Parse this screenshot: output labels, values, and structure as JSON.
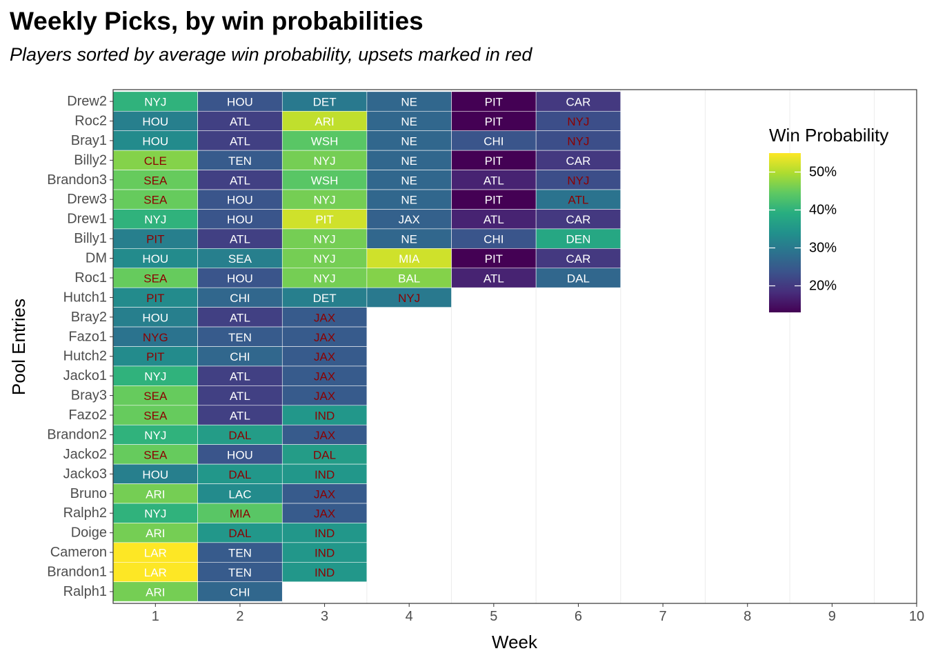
{
  "chart_data": {
    "type": "heatmap",
    "title": "Weekly Picks, by win probabilities",
    "subtitle": "Players sorted by average win probability, upsets marked in red",
    "xlabel": "Week",
    "ylabel": "Pool Entries",
    "x_ticks": [
      1,
      2,
      3,
      4,
      5,
      6,
      7,
      8,
      9,
      10
    ],
    "xlim": [
      0.5,
      10
    ],
    "grid": true,
    "upset_color": "#8b0000",
    "normal_text_color": "#ffffff",
    "legend": {
      "title": "Win Probability",
      "placement": "right",
      "range": [
        0.13,
        0.55
      ],
      "ticks": [
        {
          "value": 0.2,
          "label": "20%"
        },
        {
          "value": 0.3,
          "label": "30%"
        },
        {
          "value": 0.4,
          "label": "40%"
        },
        {
          "value": 0.5,
          "label": "50%"
        }
      ]
    },
    "rows": [
      {
        "entry": "Drew2",
        "picks": [
          [
            "NYJ",
            0.4,
            0
          ],
          [
            "HOU",
            0.24,
            0
          ],
          [
            "DET",
            0.3,
            0
          ],
          [
            "NE",
            0.27,
            0
          ],
          [
            "PIT",
            0.13,
            0
          ],
          [
            "CAR",
            0.2,
            0
          ]
        ]
      },
      {
        "entry": "Roc2",
        "picks": [
          [
            "HOU",
            0.31,
            0
          ],
          [
            "ATL",
            0.21,
            0
          ],
          [
            "ARI",
            0.51,
            0
          ],
          [
            "NE",
            0.27,
            0
          ],
          [
            "PIT",
            0.13,
            0
          ],
          [
            "NYJ",
            0.23,
            1
          ]
        ]
      },
      {
        "entry": "Bray1",
        "picks": [
          [
            "HOU",
            0.33,
            0
          ],
          [
            "ATL",
            0.21,
            0
          ],
          [
            "WSH",
            0.44,
            0
          ],
          [
            "NE",
            0.27,
            0
          ],
          [
            "CHI",
            0.24,
            0
          ],
          [
            "NYJ",
            0.23,
            1
          ]
        ]
      },
      {
        "entry": "Billy2",
        "picks": [
          [
            "CLE",
            0.47,
            1
          ],
          [
            "TEN",
            0.25,
            0
          ],
          [
            "NYJ",
            0.46,
            0
          ],
          [
            "NE",
            0.27,
            0
          ],
          [
            "PIT",
            0.13,
            0
          ],
          [
            "CAR",
            0.2,
            0
          ]
        ]
      },
      {
        "entry": "Brandon3",
        "picks": [
          [
            "SEA",
            0.45,
            1
          ],
          [
            "ATL",
            0.21,
            0
          ],
          [
            "WSH",
            0.44,
            0
          ],
          [
            "NE",
            0.27,
            0
          ],
          [
            "ATL",
            0.17,
            0
          ],
          [
            "NYJ",
            0.23,
            1
          ]
        ]
      },
      {
        "entry": "Drew3",
        "picks": [
          [
            "SEA",
            0.45,
            1
          ],
          [
            "HOU",
            0.24,
            0
          ],
          [
            "NYJ",
            0.46,
            0
          ],
          [
            "NE",
            0.27,
            0
          ],
          [
            "PIT",
            0.13,
            0
          ],
          [
            "ATL",
            0.29,
            1
          ]
        ]
      },
      {
        "entry": "Drew1",
        "picks": [
          [
            "NYJ",
            0.4,
            0
          ],
          [
            "HOU",
            0.24,
            0
          ],
          [
            "PIT",
            0.52,
            0
          ],
          [
            "JAX",
            0.26,
            0
          ],
          [
            "ATL",
            0.17,
            0
          ],
          [
            "CAR",
            0.2,
            0
          ]
        ]
      },
      {
        "entry": "Billy1",
        "picks": [
          [
            "PIT",
            0.31,
            1
          ],
          [
            "ATL",
            0.21,
            0
          ],
          [
            "NYJ",
            0.46,
            0
          ],
          [
            "NE",
            0.27,
            0
          ],
          [
            "CHI",
            0.24,
            0
          ],
          [
            "DEN",
            0.38,
            0
          ]
        ]
      },
      {
        "entry": "DM",
        "picks": [
          [
            "HOU",
            0.33,
            0
          ],
          [
            "SEA",
            0.31,
            0
          ],
          [
            "NYJ",
            0.46,
            0
          ],
          [
            "MIA",
            0.52,
            0
          ],
          [
            "PIT",
            0.13,
            0
          ],
          [
            "CAR",
            0.2,
            0
          ]
        ]
      },
      {
        "entry": "Roc1",
        "picks": [
          [
            "SEA",
            0.45,
            1
          ],
          [
            "HOU",
            0.24,
            0
          ],
          [
            "NYJ",
            0.46,
            0
          ],
          [
            "BAL",
            0.47,
            0
          ],
          [
            "ATL",
            0.17,
            0
          ],
          [
            "DAL",
            0.27,
            0
          ]
        ]
      },
      {
        "entry": "Hutch1",
        "picks": [
          [
            "PIT",
            0.33,
            1
          ],
          [
            "CHI",
            0.27,
            0
          ],
          [
            "DET",
            0.31,
            0
          ],
          [
            "NYJ",
            0.3,
            1
          ]
        ]
      },
      {
        "entry": "Bray2",
        "picks": [
          [
            "HOU",
            0.31,
            0
          ],
          [
            "ATL",
            0.21,
            0
          ],
          [
            "JAX",
            0.25,
            1
          ]
        ]
      },
      {
        "entry": "Fazo1",
        "picks": [
          [
            "NYG",
            0.29,
            1
          ],
          [
            "TEN",
            0.25,
            0
          ],
          [
            "JAX",
            0.25,
            1
          ]
        ]
      },
      {
        "entry": "Hutch2",
        "picks": [
          [
            "PIT",
            0.33,
            1
          ],
          [
            "CHI",
            0.27,
            0
          ],
          [
            "JAX",
            0.25,
            1
          ]
        ]
      },
      {
        "entry": "Jacko1",
        "picks": [
          [
            "NYJ",
            0.4,
            0
          ],
          [
            "ATL",
            0.21,
            0
          ],
          [
            "JAX",
            0.25,
            1
          ]
        ]
      },
      {
        "entry": "Bray3",
        "picks": [
          [
            "SEA",
            0.45,
            1
          ],
          [
            "ATL",
            0.21,
            0
          ],
          [
            "JAX",
            0.25,
            1
          ]
        ]
      },
      {
        "entry": "Fazo2",
        "picks": [
          [
            "SEA",
            0.45,
            1
          ],
          [
            "ATL",
            0.21,
            0
          ],
          [
            "IND",
            0.35,
            1
          ]
        ]
      },
      {
        "entry": "Brandon2",
        "picks": [
          [
            "NYJ",
            0.4,
            0
          ],
          [
            "DAL",
            0.36,
            1
          ],
          [
            "JAX",
            0.25,
            1
          ]
        ]
      },
      {
        "entry": "Jacko2",
        "picks": [
          [
            "SEA",
            0.45,
            1
          ],
          [
            "HOU",
            0.24,
            0
          ],
          [
            "DAL",
            0.36,
            1
          ]
        ]
      },
      {
        "entry": "Jacko3",
        "picks": [
          [
            "HOU",
            0.31,
            0
          ],
          [
            "DAL",
            0.35,
            1
          ],
          [
            "IND",
            0.35,
            1
          ]
        ]
      },
      {
        "entry": "Bruno",
        "picks": [
          [
            "ARI",
            0.46,
            0
          ],
          [
            "LAC",
            0.33,
            0
          ],
          [
            "JAX",
            0.25,
            1
          ]
        ]
      },
      {
        "entry": "Ralph2",
        "picks": [
          [
            "NYJ",
            0.4,
            0
          ],
          [
            "MIA",
            0.44,
            1
          ],
          [
            "JAX",
            0.25,
            1
          ]
        ]
      },
      {
        "entry": "Doige",
        "picks": [
          [
            "ARI",
            0.46,
            0
          ],
          [
            "DAL",
            0.35,
            1
          ],
          [
            "IND",
            0.35,
            1
          ]
        ]
      },
      {
        "entry": "Cameron",
        "picks": [
          [
            "LAR",
            0.55,
            0
          ],
          [
            "TEN",
            0.25,
            0
          ],
          [
            "IND",
            0.35,
            1
          ]
        ]
      },
      {
        "entry": "Brandon1",
        "picks": [
          [
            "LAR",
            0.55,
            0
          ],
          [
            "TEN",
            0.25,
            0
          ],
          [
            "IND",
            0.35,
            1
          ]
        ]
      },
      {
        "entry": "Ralph1",
        "picks": [
          [
            "ARI",
            0.46,
            0
          ],
          [
            "CHI",
            0.27,
            0
          ]
        ]
      }
    ]
  }
}
